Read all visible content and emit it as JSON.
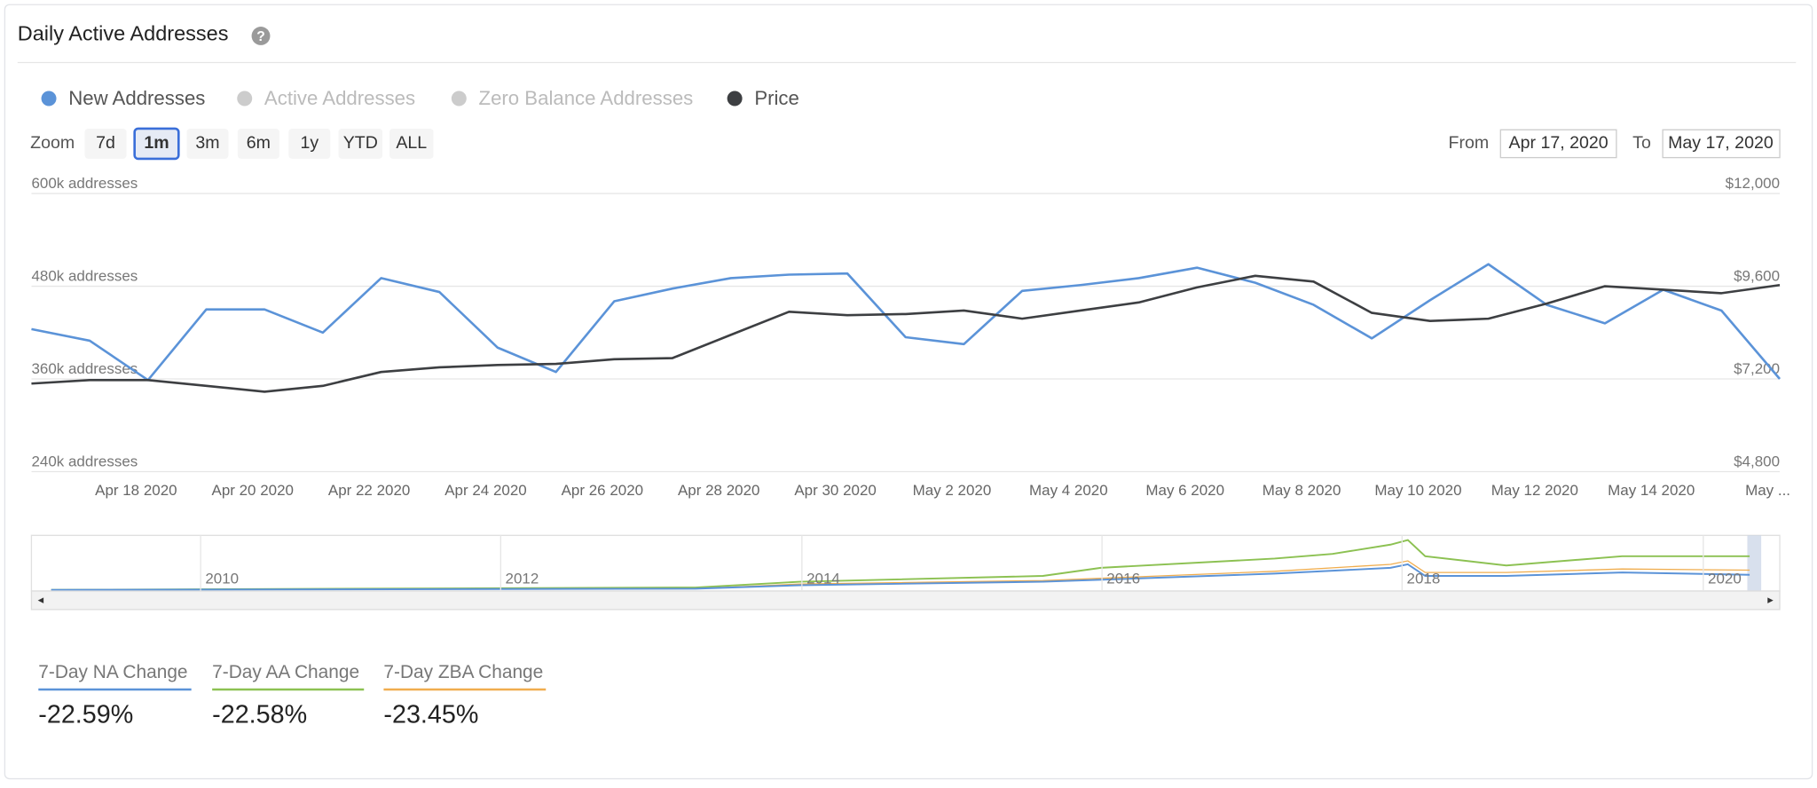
{
  "header": {
    "title": "Daily Active Addresses"
  },
  "zoom": {
    "label": "Zoom",
    "buttons": [
      "7d",
      "1m",
      "3m",
      "6m",
      "1y",
      "YTD",
      "ALL"
    ],
    "selected": "1m"
  },
  "range": {
    "from_label": "From",
    "from": "Apr 17, 2020",
    "to_label": "To",
    "to": "May 17, 2020"
  },
  "chart_data": {
    "type": "line",
    "categories": [
      null,
      "Apr 18 2020",
      null,
      "Apr 20 2020",
      null,
      "Apr 22 2020",
      null,
      "Apr 24 2020",
      null,
      "Apr 26 2020",
      null,
      "Apr 28 2020",
      null,
      "Apr 30 2020",
      null,
      "May 2 2020",
      null,
      "May 4 2020",
      null,
      "May 6 2020",
      null,
      "May 8 2020",
      null,
      "May 10 2020",
      null,
      "May 12 2020",
      null,
      "May 14 2020",
      null,
      "May ...",
      null
    ],
    "series": [
      {
        "name": "New Addresses",
        "color": "#5b93d8",
        "visible": true,
        "values": [
          424500,
          409500,
          358500,
          450000,
          450000,
          420000,
          490500,
          472500,
          400500,
          369000,
          460500,
          477000,
          490500,
          495000,
          496500,
          414000,
          405000,
          474000,
          481500,
          490500,
          504000,
          484500,
          456000,
          412500,
          462000,
          508500,
          456000,
          432000,
          475500,
          448500,
          360000
        ]
      },
      {
        "name": "Active Addresses",
        "color": "#cccccc",
        "visible": false
      },
      {
        "name": "Zero Balance Addresses",
        "color": "#cccccc",
        "visible": false
      },
      {
        "name": "Price",
        "color": "#3d3f42",
        "visible": true,
        "axis": "y2",
        "values": [
          7080,
          7170,
          7170,
          7020,
          6870,
          7020,
          7380,
          7500,
          7560,
          7590,
          7710,
          7740,
          8340,
          8940,
          8850,
          8880,
          8970,
          8760,
          8970,
          9180,
          9570,
          9870,
          9720,
          8910,
          8700,
          8760,
          9150,
          9600,
          9510,
          9420,
          9630
        ]
      }
    ],
    "ylim": [
      240000,
      600000
    ],
    "yticks": [
      {
        "value": 240000,
        "label": "240k addresses"
      },
      {
        "value": 360000,
        "label": "360k addresses"
      },
      {
        "value": 480000,
        "label": "480k addresses"
      },
      {
        "value": 600000,
        "label": "600k addresses"
      }
    ],
    "y2lim": [
      4800,
      12000
    ],
    "y2ticks": [
      {
        "value": 4800,
        "label": "$4,800"
      },
      {
        "value": 7200,
        "label": "$7,200"
      },
      {
        "value": 9600,
        "label": "$9,600"
      },
      {
        "value": 12000,
        "label": "$12,000"
      }
    ],
    "grid": true
  },
  "navigator": {
    "years": [
      "2010",
      "2012",
      "2014",
      "2016",
      "2018",
      "2020"
    ]
  },
  "stats": [
    {
      "label": "7-Day NA Change",
      "value": "-22.59%",
      "color": "#5b93d8"
    },
    {
      "label": "7-Day AA Change",
      "value": "-22.58%",
      "color": "#8cc152"
    },
    {
      "label": "7-Day ZBA Change",
      "value": "-23.45%",
      "color": "#f0ad4e"
    }
  ]
}
